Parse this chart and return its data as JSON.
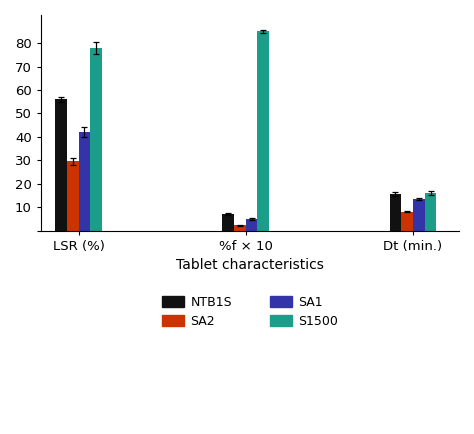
{
  "categories": [
    "LSR (%)",
    "%f × 10",
    "Dt (min.)"
  ],
  "series": {
    "NTB1S": [
      56,
      7,
      15.5
    ],
    "SA2": [
      29.5,
      2.2,
      8
    ],
    "SA1": [
      42,
      5,
      13.5
    ],
    "S1500": [
      78,
      85,
      16
    ]
  },
  "errors": {
    "NTB1S": [
      1.0,
      0.3,
      0.8
    ],
    "SA2": [
      1.5,
      0.2,
      0.3
    ],
    "SA1": [
      2.0,
      0.3,
      0.5
    ],
    "S1500": [
      2.5,
      0.8,
      0.7
    ]
  },
  "colors": {
    "NTB1S": "#111111",
    "SA2": "#cc3300",
    "SA1": "#3333aa",
    "S1500": "#1a9e8a"
  },
  "series_order": [
    "NTB1S",
    "SA2",
    "SA1",
    "S1500"
  ],
  "xlabel": "Tablet characteristics",
  "ylim": [
    0,
    92
  ],
  "yticks": [
    0,
    10,
    20,
    30,
    40,
    50,
    60,
    70,
    80
  ],
  "bar_width": 0.14,
  "background_color": "#ffffff"
}
